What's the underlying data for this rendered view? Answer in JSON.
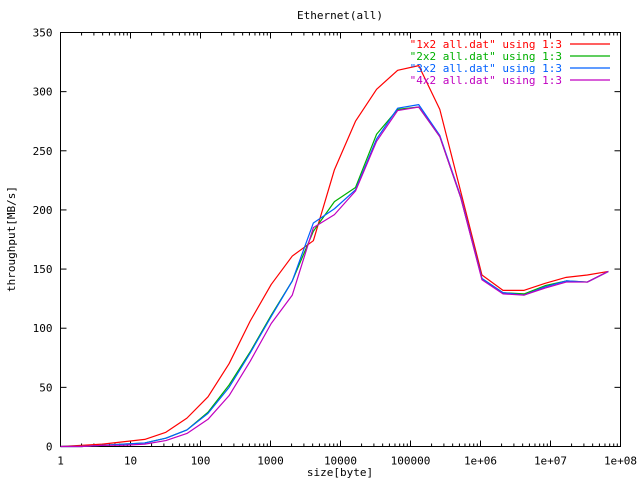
{
  "chart_data": {
    "type": "line",
    "title": "Ethernet(all)",
    "xlabel": "size[byte]",
    "ylabel": "throughput[MB/s]",
    "x_scale": "log",
    "xlim": [
      1,
      100000000
    ],
    "ylim": [
      0,
      350
    ],
    "x_ticks": [
      1,
      10,
      100,
      1000,
      10000,
      100000,
      1000000,
      10000000,
      100000000
    ],
    "x_tick_labels": [
      "1",
      "10",
      "100",
      "1000",
      "10000",
      "100000",
      "1e+06",
      "1e+07",
      "1e+08"
    ],
    "y_ticks": [
      0,
      50,
      100,
      150,
      200,
      250,
      300,
      350
    ],
    "y_tick_labels": [
      "0",
      "50",
      "100",
      "150",
      "200",
      "250",
      "300",
      "350"
    ],
    "grid": false,
    "legend_position": "top-right",
    "series": [
      {
        "name": "\"1x2 all.dat\" using 1:3",
        "color": "#ff0000",
        "x": [
          1,
          2,
          4,
          8,
          16,
          32,
          64,
          128,
          256,
          512,
          1024,
          2048,
          4096,
          8192,
          16384,
          32768,
          65536,
          131072,
          262144,
          524288,
          1048576,
          2097152,
          4194304,
          8388608,
          16777216,
          33554432,
          67108864
        ],
        "y": [
          0,
          1,
          2,
          4,
          6,
          12,
          24,
          42,
          70,
          106,
          137,
          161,
          174,
          234,
          275,
          302,
          318,
          322,
          285,
          215,
          145,
          132,
          132,
          138,
          143,
          145,
          148
        ]
      },
      {
        "name": "\"2x2 all.dat\" using 1:3",
        "color": "#00b000",
        "x": [
          1,
          2,
          4,
          8,
          16,
          32,
          64,
          128,
          256,
          512,
          1024,
          2048,
          4096,
          8192,
          16384,
          32768,
          65536,
          131072,
          262144,
          524288,
          1048576,
          2097152,
          4194304,
          8388608,
          16777216,
          33554432,
          67108864
        ],
        "y": [
          0,
          0,
          1,
          2,
          3,
          7,
          14,
          29,
          52,
          80,
          111,
          140,
          182,
          207,
          219,
          264,
          285,
          287,
          262,
          210,
          142,
          130,
          129,
          136,
          140,
          139,
          148
        ]
      },
      {
        "name": "\"3x2 all.dat\" using 1:3",
        "color": "#0060ff",
        "x": [
          1,
          2,
          4,
          8,
          16,
          32,
          64,
          128,
          256,
          512,
          1024,
          2048,
          4096,
          8192,
          16384,
          32768,
          65536,
          131072,
          262144,
          524288,
          1048576,
          2097152,
          4194304,
          8388608,
          16777216,
          33554432,
          67108864
        ],
        "y": [
          0,
          0,
          1,
          2,
          3,
          7,
          14,
          28,
          50,
          79,
          110,
          140,
          189,
          201,
          217,
          260,
          286,
          289,
          263,
          211,
          142,
          130,
          128,
          135,
          140,
          139,
          148
        ]
      },
      {
        "name": "\"4x2 all.dat\" using 1:3",
        "color": "#c000c0",
        "x": [
          1,
          2,
          4,
          8,
          16,
          32,
          64,
          128,
          256,
          512,
          1024,
          2048,
          4096,
          8192,
          16384,
          32768,
          65536,
          131072,
          262144,
          524288,
          1048576,
          2097152,
          4194304,
          8388608,
          16777216,
          33554432,
          67108864
        ],
        "y": [
          0,
          0,
          1,
          1,
          2,
          5,
          11,
          23,
          43,
          72,
          104,
          128,
          185,
          196,
          216,
          258,
          284,
          287,
          262,
          210,
          141,
          129,
          128,
          134,
          139,
          139,
          148
        ]
      }
    ]
  }
}
